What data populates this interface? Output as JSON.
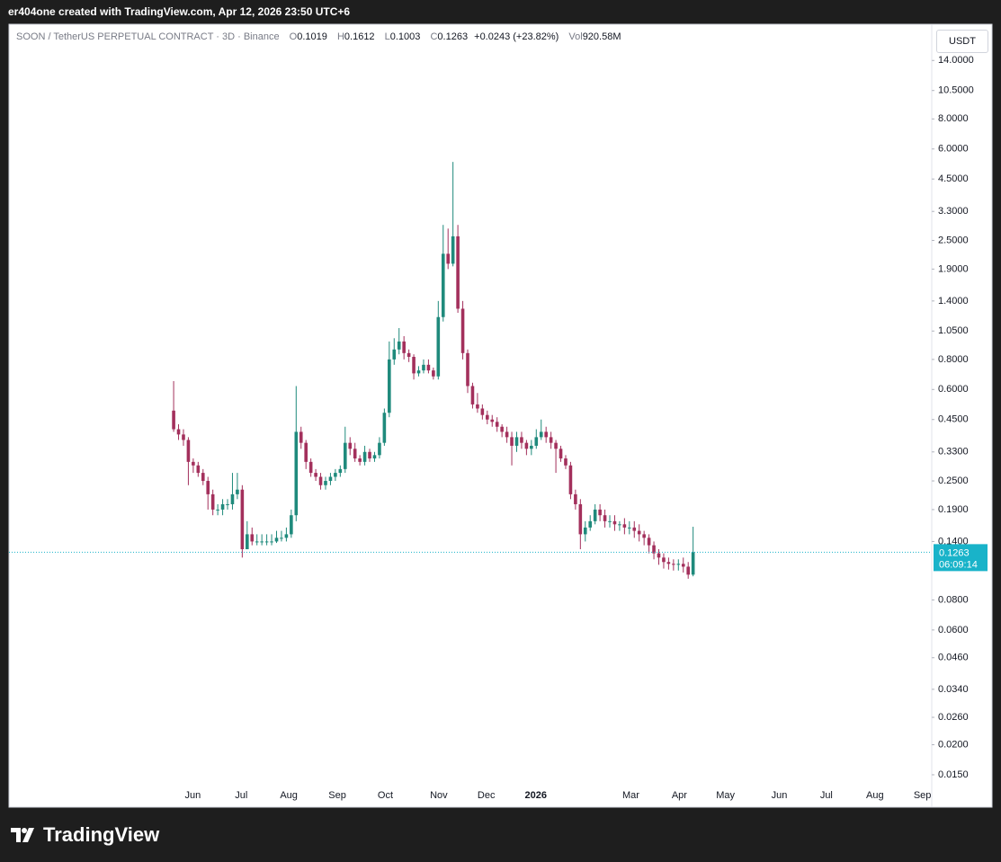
{
  "header": {
    "text": "er404one created with TradingView.com, Apr 12, 2026 23:50 UTC+6"
  },
  "footer": {
    "brand": "TradingView"
  },
  "chart_data": {
    "type": "candlestick",
    "title": "SOON / TetherUS PERPETUAL CONTRACT · 3D · Binance",
    "ohlc_labels": {
      "open": "O",
      "high": "H",
      "low": "L",
      "close": "C",
      "volume": "Vol"
    },
    "change": "+0.0243 (+23.82%)",
    "volume": "920.58M",
    "currency": "USDT",
    "countdown": "06:09:14",
    "log_scale": true,
    "up_color": "#1f8a7c",
    "down_color": "#a3305c",
    "last_price_color": "#19b3c9",
    "open": [
      0.49,
      0.41,
      0.39,
      0.37,
      0.3,
      0.29,
      0.27,
      0.25,
      0.22,
      0.19,
      0.19,
      0.2,
      0.2,
      0.22,
      0.23,
      0.13,
      0.15,
      0.14,
      0.14,
      0.14,
      0.14,
      0.14,
      0.145,
      0.145,
      0.15,
      0.18,
      0.4,
      0.36,
      0.3,
      0.27,
      0.26,
      0.24,
      0.25,
      0.26,
      0.27,
      0.28,
      0.36,
      0.34,
      0.31,
      0.3,
      0.33,
      0.31,
      0.32,
      0.36,
      0.48,
      0.8,
      0.88,
      0.95,
      0.85,
      0.82,
      0.7,
      0.72,
      0.76,
      0.72,
      0.68,
      1.2,
      2.2,
      2.0,
      2.6,
      1.3,
      0.85,
      0.62,
      0.52,
      0.5,
      0.47,
      0.45,
      0.44,
      0.42,
      0.4,
      0.38,
      0.35,
      0.38,
      0.36,
      0.34,
      0.35,
      0.38,
      0.4,
      0.38,
      0.36,
      0.34,
      0.31,
      0.29,
      0.22,
      0.2,
      0.15,
      0.16,
      0.17,
      0.19,
      0.18,
      0.17,
      0.17,
      0.165,
      0.165,
      0.16,
      0.16,
      0.155,
      0.15,
      0.145,
      0.135,
      0.125,
      0.12,
      0.115,
      0.113,
      0.112,
      0.113,
      0.11,
      0.1019
    ],
    "high": [
      0.65,
      0.43,
      0.41,
      0.38,
      0.31,
      0.3,
      0.28,
      0.26,
      0.23,
      0.2,
      0.21,
      0.21,
      0.27,
      0.27,
      0.24,
      0.17,
      0.16,
      0.15,
      0.15,
      0.15,
      0.15,
      0.155,
      0.155,
      0.16,
      0.19,
      0.62,
      0.42,
      0.37,
      0.31,
      0.28,
      0.27,
      0.26,
      0.27,
      0.28,
      0.29,
      0.42,
      0.38,
      0.36,
      0.32,
      0.35,
      0.34,
      0.33,
      0.38,
      0.5,
      0.95,
      0.98,
      1.08,
      1.0,
      0.88,
      0.84,
      0.75,
      0.8,
      0.8,
      0.74,
      1.4,
      2.9,
      2.8,
      5.3,
      2.9,
      1.4,
      0.88,
      0.64,
      0.58,
      0.52,
      0.49,
      0.47,
      0.46,
      0.43,
      0.42,
      0.4,
      0.4,
      0.4,
      0.37,
      0.37,
      0.41,
      0.45,
      0.42,
      0.4,
      0.37,
      0.35,
      0.32,
      0.3,
      0.23,
      0.21,
      0.17,
      0.18,
      0.2,
      0.2,
      0.19,
      0.18,
      0.18,
      0.17,
      0.175,
      0.17,
      0.17,
      0.165,
      0.155,
      0.15,
      0.14,
      0.13,
      0.125,
      0.12,
      0.118,
      0.118,
      0.12,
      0.115,
      0.1612
    ],
    "low": [
      0.4,
      0.37,
      0.35,
      0.24,
      0.27,
      0.26,
      0.24,
      0.19,
      0.18,
      0.18,
      0.18,
      0.19,
      0.19,
      0.21,
      0.12,
      0.13,
      0.135,
      0.135,
      0.135,
      0.135,
      0.135,
      0.138,
      0.14,
      0.14,
      0.145,
      0.17,
      0.34,
      0.28,
      0.26,
      0.25,
      0.23,
      0.23,
      0.24,
      0.25,
      0.26,
      0.27,
      0.32,
      0.3,
      0.29,
      0.29,
      0.3,
      0.3,
      0.31,
      0.35,
      0.46,
      0.76,
      0.84,
      0.8,
      0.78,
      0.66,
      0.68,
      0.7,
      0.7,
      0.66,
      0.66,
      1.15,
      1.9,
      1.95,
      1.25,
      0.8,
      0.58,
      0.5,
      0.48,
      0.45,
      0.43,
      0.42,
      0.4,
      0.38,
      0.36,
      0.29,
      0.33,
      0.34,
      0.32,
      0.32,
      0.34,
      0.37,
      0.36,
      0.34,
      0.27,
      0.3,
      0.28,
      0.21,
      0.19,
      0.13,
      0.14,
      0.155,
      0.165,
      0.17,
      0.16,
      0.16,
      0.155,
      0.155,
      0.15,
      0.15,
      0.145,
      0.14,
      0.135,
      0.125,
      0.118,
      0.112,
      0.108,
      0.107,
      0.106,
      0.106,
      0.104,
      0.098,
      0.1003
    ],
    "close": [
      0.41,
      0.39,
      0.37,
      0.3,
      0.29,
      0.27,
      0.25,
      0.22,
      0.19,
      0.19,
      0.2,
      0.2,
      0.22,
      0.23,
      0.13,
      0.15,
      0.14,
      0.14,
      0.14,
      0.14,
      0.14,
      0.145,
      0.145,
      0.15,
      0.18,
      0.4,
      0.36,
      0.3,
      0.27,
      0.26,
      0.24,
      0.25,
      0.26,
      0.27,
      0.28,
      0.36,
      0.34,
      0.31,
      0.3,
      0.33,
      0.31,
      0.32,
      0.36,
      0.48,
      0.8,
      0.88,
      0.95,
      0.85,
      0.82,
      0.7,
      0.72,
      0.76,
      0.72,
      0.68,
      1.2,
      2.2,
      2.0,
      2.6,
      1.3,
      0.85,
      0.62,
      0.52,
      0.5,
      0.47,
      0.45,
      0.44,
      0.42,
      0.4,
      0.38,
      0.35,
      0.38,
      0.36,
      0.34,
      0.35,
      0.38,
      0.4,
      0.38,
      0.36,
      0.34,
      0.31,
      0.29,
      0.22,
      0.2,
      0.15,
      0.16,
      0.17,
      0.19,
      0.18,
      0.17,
      0.17,
      0.165,
      0.165,
      0.16,
      0.16,
      0.155,
      0.15,
      0.145,
      0.135,
      0.125,
      0.12,
      0.115,
      0.113,
      0.112,
      0.113,
      0.11,
      0.1019,
      0.1263
    ],
    "xlim": [
      -33.6,
      154.7
    ],
    "xticks": [
      {
        "value": 3.9,
        "label": "Jun"
      },
      {
        "value": 13.8,
        "label": "Jul"
      },
      {
        "value": 23.5,
        "label": "Aug"
      },
      {
        "value": 33.4,
        "label": "Sep"
      },
      {
        "value": 43.2,
        "label": "Oct"
      },
      {
        "value": 54.1,
        "label": "Nov"
      },
      {
        "value": 63.8,
        "label": "Dec"
      },
      {
        "value": 73.9,
        "label": "2026"
      },
      {
        "value": 93.3,
        "label": "Mar"
      },
      {
        "value": 103.2,
        "label": "Apr"
      },
      {
        "value": 112.6,
        "label": "May"
      },
      {
        "value": 123.6,
        "label": "Jun"
      },
      {
        "value": 133.2,
        "label": "Jul"
      },
      {
        "value": 143.1,
        "label": "Aug"
      },
      {
        "value": 152.8,
        "label": "Sep"
      }
    ],
    "ylim": [
      0.011,
      19.8
    ],
    "yticks": [
      {
        "value": 14,
        "label": "14.0000"
      },
      {
        "value": 10.5,
        "label": "10.5000"
      },
      {
        "value": 8,
        "label": "8.0000"
      },
      {
        "value": 6,
        "label": "6.0000"
      },
      {
        "value": 4.5,
        "label": "4.5000"
      },
      {
        "value": 3.3,
        "label": "3.3000"
      },
      {
        "value": 2.5,
        "label": "2.5000"
      },
      {
        "value": 1.9,
        "label": "1.9000"
      },
      {
        "value": 1.4,
        "label": "1.4000"
      },
      {
        "value": 1.05,
        "label": "1.0500"
      },
      {
        "value": 0.8,
        "label": "0.8000"
      },
      {
        "value": 0.6,
        "label": "0.6000"
      },
      {
        "value": 0.45,
        "label": "0.4500"
      },
      {
        "value": 0.33,
        "label": "0.3300"
      },
      {
        "value": 0.25,
        "label": "0.2500"
      },
      {
        "value": 0.19,
        "label": "0.1900"
      },
      {
        "value": 0.14,
        "label": "0.1400"
      },
      {
        "value": 0.08,
        "label": "0.0800"
      },
      {
        "value": 0.06,
        "label": "0.0600"
      },
      {
        "value": 0.046,
        "label": "0.0460"
      },
      {
        "value": 0.034,
        "label": "0.0340"
      },
      {
        "value": 0.026,
        "label": "0.0260"
      },
      {
        "value": 0.02,
        "label": "0.0200"
      },
      {
        "value": 0.015,
        "label": "0.0150"
      }
    ]
  }
}
